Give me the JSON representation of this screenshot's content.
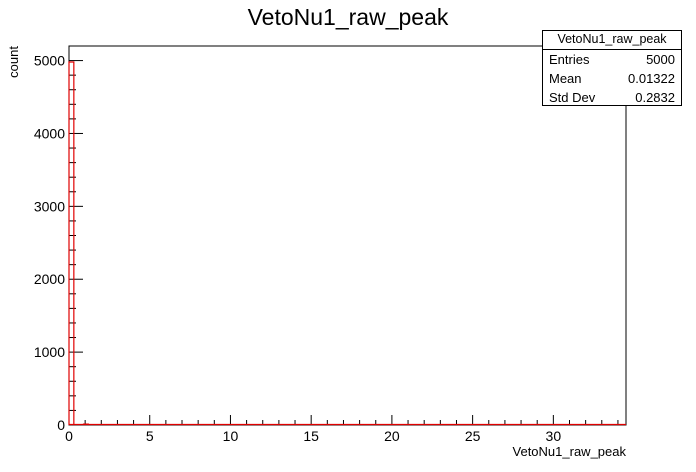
{
  "chart_data": {
    "type": "bar",
    "title": "VetoNu1_raw_peak",
    "xlabel": "VetoNu1_raw_peak",
    "ylabel": "count",
    "xlim": [
      0,
      34.5
    ],
    "ylim": [
      0,
      5200
    ],
    "x_ticks": [
      "0",
      "5",
      "10",
      "15",
      "20",
      "25",
      "30"
    ],
    "y_ticks": [
      "0",
      "1000",
      "2000",
      "3000",
      "4000",
      "5000"
    ],
    "bins": [
      {
        "x0": 0,
        "x1": 0.3,
        "value": 4980
      },
      {
        "x0": 0.3,
        "x1": 0.6,
        "value": 0
      },
      {
        "x0": 0.9,
        "x1": 1.2,
        "value": 12
      }
    ],
    "line_color": "#e00000",
    "stats": {
      "name": "VetoNu1_raw_peak",
      "rows": [
        {
          "label": "Entries",
          "value": "5000"
        },
        {
          "label": "Mean",
          "value": "0.01322"
        },
        {
          "label": "Std Dev",
          "value": "0.2832"
        }
      ]
    }
  }
}
